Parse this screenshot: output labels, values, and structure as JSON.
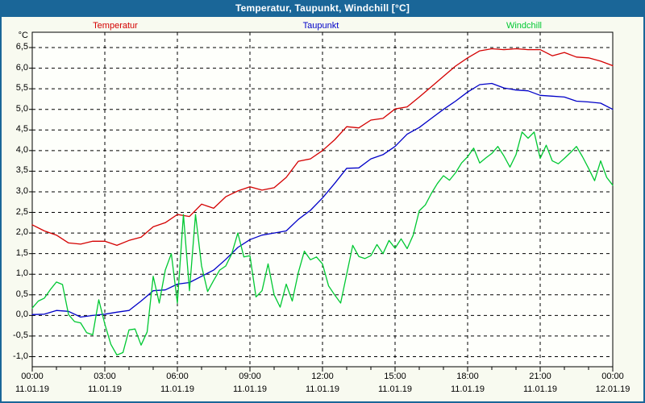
{
  "window": {
    "title": "Temperatur, Taupunkt, Windchill [°C]"
  },
  "colors": {
    "titlebar_bg": "#1A6698",
    "window_border": "#1A6698",
    "page_bg": "#F8FAF0",
    "plot_bg": "#FEFFFB",
    "grid": "#000000",
    "temperatur": "#D40000",
    "taupunkt": "#0000C8",
    "windchill": "#00C832"
  },
  "legend": [
    {
      "label": "Temperatur",
      "color": "#D40000"
    },
    {
      "label": "Taupunkt",
      "color": "#0000C8"
    },
    {
      "label": "Windchill",
      "color": "#00C832"
    }
  ],
  "chart_data": {
    "type": "line",
    "title": "Temperatur, Taupunkt, Windchill [°C]",
    "grid": "dashed",
    "y_axis": {
      "unit": "°C",
      "min": -1.0,
      "max": 6.5,
      "tick_step": 0.5,
      "tick_labels": [
        "6,5",
        "6,0",
        "5,5",
        "5,0",
        "4,5",
        "4,0",
        "3,5",
        "3,0",
        "2,5",
        "2,0",
        "1,5",
        "1,0",
        "0,5",
        "0,0",
        "-0,5",
        "-1,0"
      ]
    },
    "x_axis": {
      "hours_span": 24,
      "major_tick_hours": 3,
      "minor_tick_hours": 1,
      "tick_labels": [
        {
          "time": "00:00",
          "date": "11.01.19"
        },
        {
          "time": "03:00",
          "date": "11.01.19"
        },
        {
          "time": "06:00",
          "date": "11.01.19"
        },
        {
          "time": "09:00",
          "date": "11.01.19"
        },
        {
          "time": "12:00",
          "date": "11.01.19"
        },
        {
          "time": "15:00",
          "date": "11.01.19"
        },
        {
          "time": "18:00",
          "date": "11.01.19"
        },
        {
          "time": "21:00",
          "date": "11.01.19"
        },
        {
          "time": "00:00",
          "date": "12.01.19"
        }
      ]
    },
    "series": [
      {
        "name": "Temperatur",
        "color": "#D40000",
        "interval_h": 0.5,
        "values": [
          2.2,
          2.05,
          1.95,
          1.76,
          1.73,
          1.8,
          1.8,
          1.7,
          1.82,
          1.9,
          2.15,
          2.25,
          2.45,
          2.4,
          2.7,
          2.6,
          2.88,
          3.02,
          3.12,
          3.04,
          3.1,
          3.35,
          3.74,
          3.8,
          4.0,
          4.26,
          4.58,
          4.55,
          4.74,
          4.78,
          5.01,
          5.06,
          5.3,
          5.55,
          5.8,
          6.05,
          6.25,
          6.42,
          6.47,
          6.45,
          6.47,
          6.45,
          6.45,
          6.3,
          6.38,
          6.27,
          6.25,
          6.17,
          6.06
        ]
      },
      {
        "name": "Taupunkt",
        "color": "#0000C8",
        "interval_h": 0.5,
        "values": [
          0.02,
          0.03,
          0.12,
          0.1,
          -0.04,
          0.0,
          0.03,
          0.08,
          0.12,
          0.35,
          0.6,
          0.62,
          0.76,
          0.8,
          0.95,
          1.1,
          1.36,
          1.65,
          1.84,
          1.95,
          2.0,
          2.05,
          2.33,
          2.55,
          2.85,
          3.2,
          3.57,
          3.58,
          3.8,
          3.9,
          4.1,
          4.4,
          4.56,
          4.78,
          5.0,
          5.2,
          5.42,
          5.6,
          5.63,
          5.52,
          5.47,
          5.45,
          5.34,
          5.32,
          5.3,
          5.2,
          5.18,
          5.15,
          5.0
        ]
      },
      {
        "name": "Windchill",
        "color": "#00C832",
        "interval_h": 0.25,
        "values": [
          0.18,
          0.35,
          0.42,
          0.63,
          0.81,
          0.75,
          0.02,
          -0.15,
          -0.18,
          -0.42,
          -0.47,
          0.38,
          -0.21,
          -0.7,
          -0.96,
          -0.9,
          -0.35,
          -0.33,
          -0.72,
          -0.4,
          0.95,
          0.3,
          1.1,
          1.5,
          0.3,
          2.45,
          0.6,
          2.45,
          1.2,
          0.58,
          0.85,
          1.1,
          1.2,
          1.5,
          2.0,
          1.42,
          1.45,
          0.45,
          0.6,
          1.25,
          0.5,
          0.2,
          0.76,
          0.35,
          1.04,
          1.56,
          1.35,
          1.42,
          1.25,
          0.72,
          0.5,
          0.3,
          1.0,
          1.7,
          1.43,
          1.38,
          1.45,
          1.72,
          1.5,
          1.82,
          1.63,
          1.86,
          1.62,
          1.95,
          2.54,
          2.68,
          2.96,
          3.2,
          3.39,
          3.28,
          3.46,
          3.7,
          3.85,
          4.06,
          3.7,
          3.82,
          3.93,
          4.1,
          3.87,
          3.6,
          3.9,
          4.45,
          4.3,
          4.45,
          3.81,
          4.13,
          3.75,
          3.68,
          3.81,
          3.95,
          4.1,
          3.85,
          3.57,
          3.27,
          3.75,
          3.35,
          3.16
        ]
      }
    ]
  }
}
